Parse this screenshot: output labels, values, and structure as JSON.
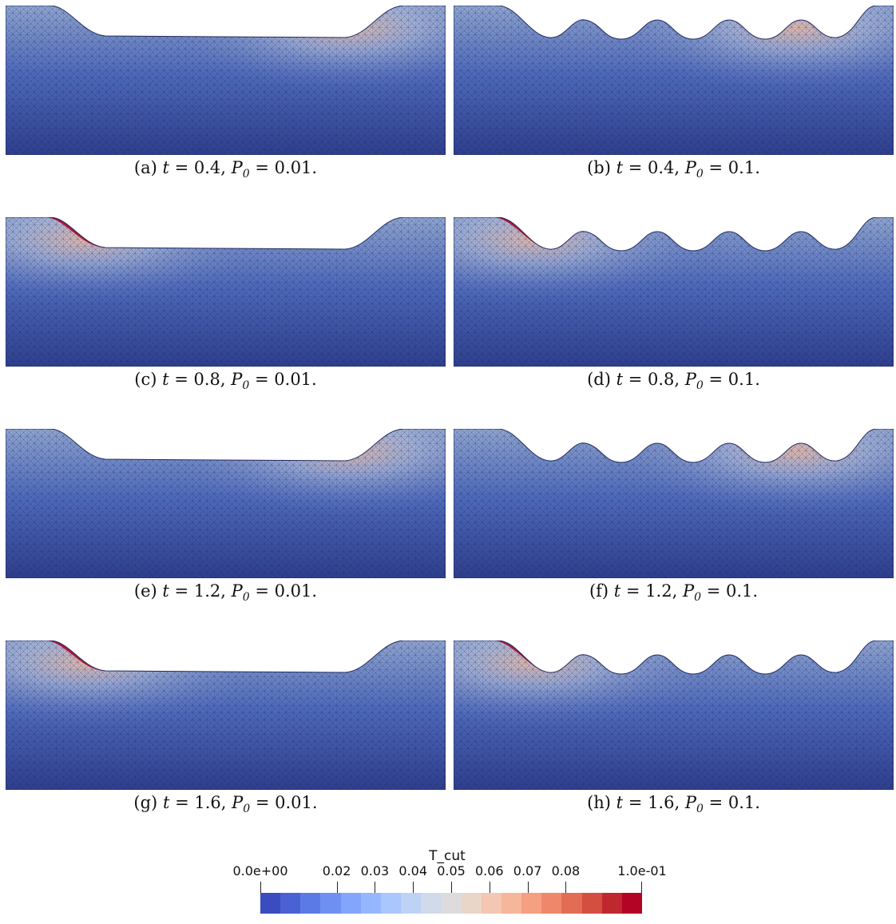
{
  "panels": [
    {
      "id": "a",
      "caption_letter": "(a)",
      "t": "0.4",
      "p0": "0.01",
      "hot_side": "right",
      "surface": "flat"
    },
    {
      "id": "b",
      "caption_letter": "(b)",
      "t": "0.4",
      "p0": "0.1",
      "hot_side": "right",
      "surface": "wavy"
    },
    {
      "id": "c",
      "caption_letter": "(c)",
      "t": "0.8",
      "p0": "0.01",
      "hot_side": "left",
      "surface": "flat"
    },
    {
      "id": "d",
      "caption_letter": "(d)",
      "t": "0.8",
      "p0": "0.1",
      "hot_side": "left",
      "surface": "wavy"
    },
    {
      "id": "e",
      "caption_letter": "(e)",
      "t": "1.2",
      "p0": "0.01",
      "hot_side": "right",
      "surface": "flat"
    },
    {
      "id": "f",
      "caption_letter": "(f)",
      "t": "1.2",
      "p0": "0.1",
      "hot_side": "right",
      "surface": "wavy"
    },
    {
      "id": "g",
      "caption_letter": "(g)",
      "t": "1.6",
      "p0": "0.01",
      "hot_side": "left",
      "surface": "flat"
    },
    {
      "id": "h",
      "caption_letter": "(h)",
      "t": "1.6",
      "p0": "0.1",
      "hot_side": "left",
      "surface": "wavy"
    }
  ],
  "colorbar": {
    "title": "T_cut",
    "min_label": "0.0e+00",
    "max_label": "1.0e-01",
    "ticks": [
      "0.02",
      "0.03",
      "0.04",
      "0.05",
      "0.06",
      "0.07",
      "0.08"
    ],
    "colors": [
      "#3b4cc0",
      "#4961d2",
      "#5b7ae5",
      "#6e90f2",
      "#82a6fb",
      "#96b7ff",
      "#aac7fd",
      "#bed2f6",
      "#d0daea",
      "#dddcdc",
      "#ead5c9",
      "#f3c7b1",
      "#f6b69a",
      "#f5a081",
      "#ef886b",
      "#e36c55",
      "#d44e41",
      "#c0282f",
      "#b40426"
    ]
  },
  "palette": {
    "deep": "#2f3f8f",
    "mid": "#4f6bbd",
    "light": "#8fa4cf",
    "hot": "#b40426"
  }
}
